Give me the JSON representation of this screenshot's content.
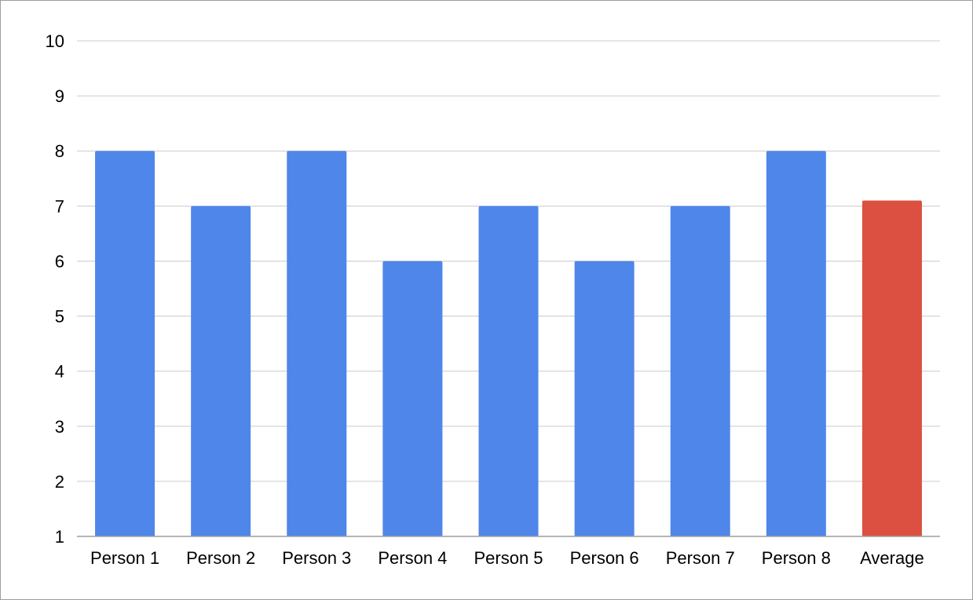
{
  "chart_data": {
    "type": "bar",
    "title": "",
    "xlabel": "",
    "ylabel": "",
    "categories": [
      "Person 1",
      "Person 2",
      "Person 3",
      "Person 4",
      "Person 5",
      "Person 6",
      "Person 7",
      "Person 8",
      "Average"
    ],
    "values": [
      8,
      7,
      8,
      6,
      7,
      6,
      7,
      8,
      7.1
    ],
    "bar_colors": [
      "#4F86EA",
      "#4F86EA",
      "#4F86EA",
      "#4F86EA",
      "#4F86EA",
      "#4F86EA",
      "#4F86EA",
      "#4F86EA",
      "#DB5040"
    ],
    "ylim": [
      1,
      10
    ],
    "yticks": [
      "1",
      "2",
      "3",
      "4",
      "5",
      "6",
      "7",
      "8",
      "9",
      "10"
    ],
    "grid": true,
    "legend": "none",
    "gridline_color": "#cccccc",
    "axis_color": "#9e9e9e"
  }
}
